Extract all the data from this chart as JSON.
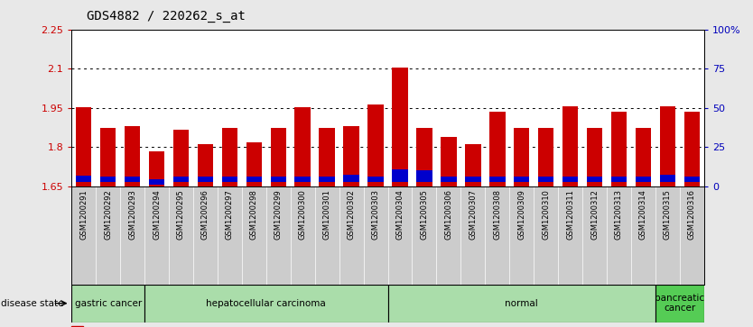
{
  "title": "GDS4882 / 220262_s_at",
  "samples": [
    "GSM1200291",
    "GSM1200292",
    "GSM1200293",
    "GSM1200294",
    "GSM1200295",
    "GSM1200296",
    "GSM1200297",
    "GSM1200298",
    "GSM1200299",
    "GSM1200300",
    "GSM1200301",
    "GSM1200302",
    "GSM1200303",
    "GSM1200304",
    "GSM1200305",
    "GSM1200306",
    "GSM1200307",
    "GSM1200308",
    "GSM1200309",
    "GSM1200310",
    "GSM1200311",
    "GSM1200312",
    "GSM1200313",
    "GSM1200314",
    "GSM1200315",
    "GSM1200316"
  ],
  "red_values": [
    1.952,
    1.875,
    1.88,
    1.785,
    1.865,
    1.81,
    1.875,
    1.82,
    1.875,
    1.952,
    1.875,
    1.88,
    1.963,
    2.103,
    1.875,
    1.84,
    1.81,
    1.935,
    1.875,
    1.875,
    1.955,
    1.875,
    1.935,
    1.875,
    1.955,
    1.935
  ],
  "blue_heights": [
    0.025,
    0.02,
    0.02,
    0.018,
    0.02,
    0.02,
    0.02,
    0.02,
    0.02,
    0.02,
    0.02,
    0.028,
    0.02,
    0.048,
    0.045,
    0.02,
    0.02,
    0.02,
    0.02,
    0.02,
    0.02,
    0.02,
    0.02,
    0.02,
    0.028,
    0.02
  ],
  "blue_bottoms": [
    1.666,
    1.666,
    1.666,
    1.658,
    1.666,
    1.666,
    1.666,
    1.666,
    1.666,
    1.666,
    1.666,
    1.666,
    1.666,
    1.666,
    1.666,
    1.666,
    1.666,
    1.666,
    1.666,
    1.666,
    1.666,
    1.666,
    1.666,
    1.666,
    1.666,
    1.666
  ],
  "ymin": 1.65,
  "ymax": 2.25,
  "yticks_left": [
    1.65,
    1.8,
    1.95,
    2.1,
    2.25
  ],
  "yticks_right_positions": [
    1.65,
    1.8,
    1.95,
    2.1,
    2.25
  ],
  "yticks_right_labels": [
    "0",
    "25",
    "50",
    "75",
    "100%"
  ],
  "grid_lines": [
    1.8,
    1.95,
    2.1
  ],
  "groups": [
    {
      "label": "gastric cancer",
      "start": 0,
      "end": 3,
      "color": "#aaddaa"
    },
    {
      "label": "hepatocellular carcinoma",
      "start": 3,
      "end": 13,
      "color": "#aaddaa"
    },
    {
      "label": "normal",
      "start": 13,
      "end": 24,
      "color": "#aaddaa"
    },
    {
      "label": "pancreatic\ncancer",
      "start": 24,
      "end": 26,
      "color": "#55cc55"
    }
  ],
  "bar_color": "#cc0000",
  "blue_color": "#0000cc",
  "bg_color": "#e8e8e8",
  "plot_bg": "#ffffff",
  "tick_label_bg": "#cccccc",
  "tick_color_left": "#cc0000",
  "tick_color_right": "#0000bb"
}
